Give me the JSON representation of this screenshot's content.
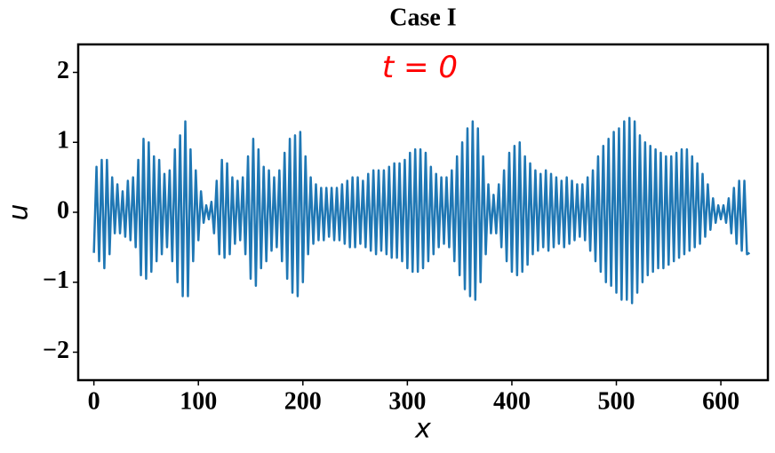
{
  "chart_data": {
    "type": "line",
    "title": "Case I",
    "annotation": "t = 0",
    "xlabel": "x",
    "ylabel": "u",
    "color": "#1f77b4",
    "annotation_color": "#ff0000",
    "xlim": [
      -15,
      645
    ],
    "ylim": [
      -2.4,
      2.4
    ],
    "xticks": [
      0,
      100,
      200,
      300,
      400,
      500,
      600
    ],
    "yticks": [
      {
        "value": -2,
        "label": "−2"
      },
      {
        "value": -1,
        "label": "−1"
      },
      0,
      1,
      2
    ],
    "annotation_x": 312,
    "annotation_y": 2.05,
    "x": [
      0,
      2.5,
      5,
      7.5,
      10,
      12.5,
      15,
      17.5,
      20,
      22.5,
      25,
      27.5,
      30,
      32.5,
      35,
      37.5,
      40,
      42.5,
      45,
      47.5,
      50,
      52.5,
      55,
      57.5,
      60,
      62.5,
      65,
      67.5,
      70,
      72.5,
      75,
      77.5,
      80,
      82.5,
      85,
      87.5,
      90,
      92.5,
      95,
      97.5,
      100,
      102.5,
      105,
      107.5,
      110,
      112.5,
      115,
      117.5,
      120,
      122.5,
      125,
      127.5,
      130,
      132.5,
      135,
      137.5,
      140,
      142.5,
      145,
      147.5,
      150,
      152.5,
      155,
      157.5,
      160,
      162.5,
      165,
      167.5,
      170,
      172.5,
      175,
      177.5,
      180,
      182.5,
      185,
      187.5,
      190,
      192.5,
      195,
      197.5,
      200,
      202.5,
      205,
      207.5,
      210,
      212.5,
      215,
      217.5,
      220,
      222.5,
      225,
      227.5,
      230,
      232.5,
      235,
      237.5,
      240,
      242.5,
      245,
      247.5,
      250,
      252.5,
      255,
      257.5,
      260,
      262.5,
      265,
      267.5,
      270,
      272.5,
      275,
      277.5,
      280,
      282.5,
      285,
      287.5,
      290,
      292.5,
      295,
      297.5,
      300,
      302.5,
      305,
      307.5,
      310,
      312.5,
      315,
      317.5,
      320,
      322.5,
      325,
      327.5,
      330,
      332.5,
      335,
      337.5,
      340,
      342.5,
      345,
      347.5,
      350,
      352.5,
      355,
      357.5,
      360,
      362.5,
      365,
      367.5,
      370,
      372.5,
      375,
      377.5,
      380,
      382.5,
      385,
      387.5,
      390,
      392.5,
      395,
      397.5,
      400,
      402.5,
      405,
      407.5,
      410,
      412.5,
      415,
      417.5,
      420,
      422.5,
      425,
      427.5,
      430,
      432.5,
      435,
      437.5,
      440,
      442.5,
      445,
      447.5,
      450,
      452.5,
      455,
      457.5,
      460,
      462.5,
      465,
      467.5,
      470,
      472.5,
      475,
      477.5,
      480,
      482.5,
      485,
      487.5,
      490,
      492.5,
      495,
      497.5,
      500,
      502.5,
      505,
      507.5,
      510,
      512.5,
      515,
      517.5,
      520,
      522.5,
      525,
      527.5,
      530,
      532.5,
      535,
      537.5,
      540,
      542.5,
      545,
      547.5,
      550,
      552.5,
      555,
      557.5,
      560,
      562.5,
      565,
      567.5,
      570,
      572.5,
      575,
      577.5,
      580,
      582.5,
      585,
      587.5,
      590,
      592.5,
      595,
      597.5,
      600,
      602.5,
      605,
      607.5,
      610,
      612.5,
      615,
      617.5,
      620,
      622.5,
      625,
      627.5
    ],
    "values": [
      -0.58,
      0.65,
      -0.7,
      0.75,
      -0.8,
      0.75,
      -0.6,
      0.5,
      -0.3,
      0.4,
      -0.3,
      0.3,
      -0.35,
      0.45,
      -0.4,
      0.5,
      -0.5,
      0.75,
      -0.9,
      1.05,
      -0.95,
      1.0,
      -0.85,
      0.8,
      -0.7,
      0.75,
      -0.6,
      0.55,
      -0.5,
      0.6,
      -0.7,
      0.9,
      -1.0,
      1.1,
      -1.2,
      1.3,
      -1.2,
      0.9,
      -0.7,
      0.6,
      -0.4,
      0.3,
      -0.15,
      0.1,
      -0.1,
      0.15,
      -0.3,
      0.45,
      -0.6,
      0.75,
      -0.65,
      0.7,
      -0.6,
      0.5,
      -0.45,
      0.45,
      -0.4,
      0.5,
      -0.6,
      0.8,
      -0.95,
      1.05,
      -1.05,
      0.9,
      -0.8,
      0.65,
      -0.7,
      0.6,
      -0.55,
      0.5,
      -0.5,
      0.6,
      -0.7,
      0.85,
      -0.95,
      1.05,
      -1.15,
      1.1,
      -1.2,
      1.15,
      -1.0,
      0.8,
      -0.6,
      0.5,
      -0.45,
      0.4,
      -0.4,
      0.35,
      -0.4,
      0.35,
      -0.35,
      0.35,
      -0.4,
      0.35,
      -0.4,
      0.4,
      -0.45,
      0.45,
      -0.5,
      0.5,
      -0.5,
      0.5,
      -0.45,
      0.45,
      -0.5,
      0.55,
      -0.55,
      0.6,
      -0.6,
      0.6,
      -0.55,
      0.6,
      -0.6,
      0.65,
      -0.65,
      0.7,
      -0.65,
      0.7,
      -0.7,
      0.75,
      -0.8,
      0.85,
      -0.85,
      0.9,
      -0.85,
      0.9,
      -0.8,
      0.85,
      -0.7,
      0.65,
      -0.6,
      0.55,
      -0.5,
      0.5,
      -0.45,
      0.5,
      -0.5,
      0.6,
      -0.7,
      0.8,
      -0.9,
      1.0,
      -1.1,
      1.2,
      -1.2,
      1.3,
      -1.25,
      1.2,
      -1.0,
      0.8,
      -0.6,
      0.4,
      -0.3,
      0.25,
      -0.3,
      0.4,
      -0.5,
      0.6,
      -0.7,
      0.85,
      -0.85,
      0.95,
      -0.9,
      1.0,
      -0.85,
      0.8,
      -0.75,
      0.7,
      -0.6,
      0.6,
      -0.55,
      0.55,
      -0.5,
      0.6,
      -0.55,
      0.55,
      -0.5,
      0.5,
      -0.45,
      0.45,
      -0.5,
      0.5,
      -0.45,
      0.45,
      -0.4,
      0.4,
      -0.35,
      0.4,
      -0.4,
      0.5,
      -0.55,
      0.6,
      -0.7,
      0.8,
      -0.85,
      0.95,
      -1.0,
      1.05,
      -1.05,
      1.15,
      -1.15,
      1.2,
      -1.25,
      1.3,
      -1.25,
      1.35,
      -1.3,
      1.3,
      -1.15,
      1.1,
      -1.0,
      1.0,
      -0.9,
      0.95,
      -0.85,
      0.9,
      -0.8,
      0.85,
      -0.8,
      0.8,
      -0.75,
      0.8,
      -0.7,
      0.85,
      -0.65,
      0.9,
      -0.6,
      0.9,
      -0.55,
      0.8,
      -0.5,
      0.7,
      -0.45,
      0.55,
      -0.35,
      0.4,
      -0.25,
      0.2,
      -0.15,
      0.1,
      -0.1,
      0.1,
      -0.15,
      0.2,
      -0.3,
      0.35,
      -0.45,
      0.45,
      -0.55,
      0.45,
      -0.6,
      -0.58
    ]
  }
}
